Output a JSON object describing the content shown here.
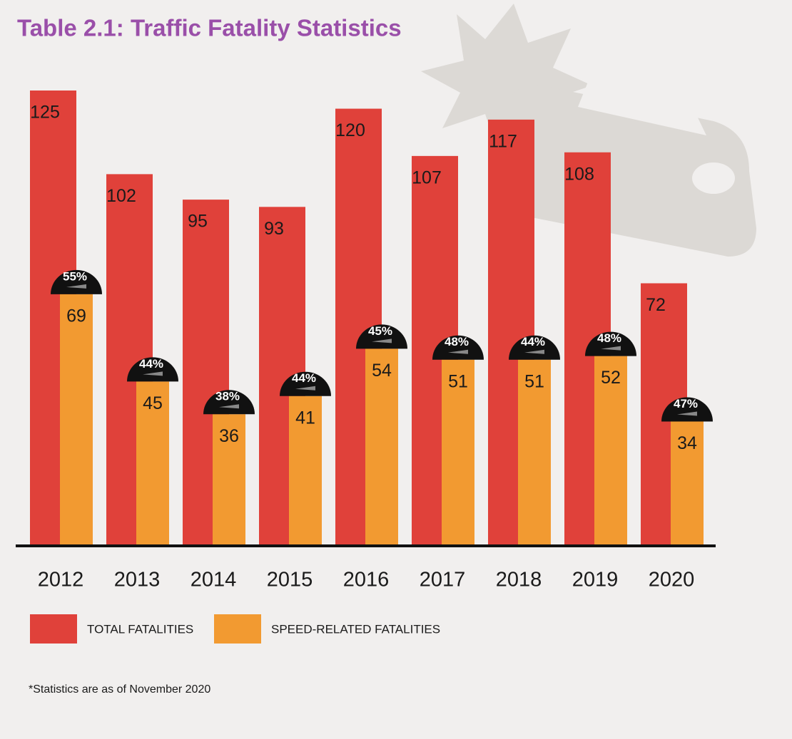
{
  "chart_data": {
    "type": "bar",
    "title": "Table 2.1: Traffic Fatality Statistics",
    "categories": [
      "2012",
      "2013",
      "2014",
      "2015",
      "2016",
      "2017",
      "2018",
      "2019",
      "2020"
    ],
    "series": [
      {
        "name": "TOTAL FATALITIES",
        "color": "#e0413a",
        "values": [
          125,
          102,
          95,
          93,
          120,
          107,
          117,
          108,
          72
        ]
      },
      {
        "name": "SPEED-RELATED FATALITIES",
        "color": "#f29a31",
        "values": [
          69,
          45,
          36,
          41,
          54,
          51,
          51,
          52,
          34
        ]
      }
    ],
    "annotations": [
      "55%",
      "44%",
      "38%",
      "44%",
      "45%",
      "48%",
      "44%",
      "48%",
      "47%"
    ],
    "ylim": [
      0,
      125
    ],
    "footnote": "*Statistics are as of November 2020"
  }
}
